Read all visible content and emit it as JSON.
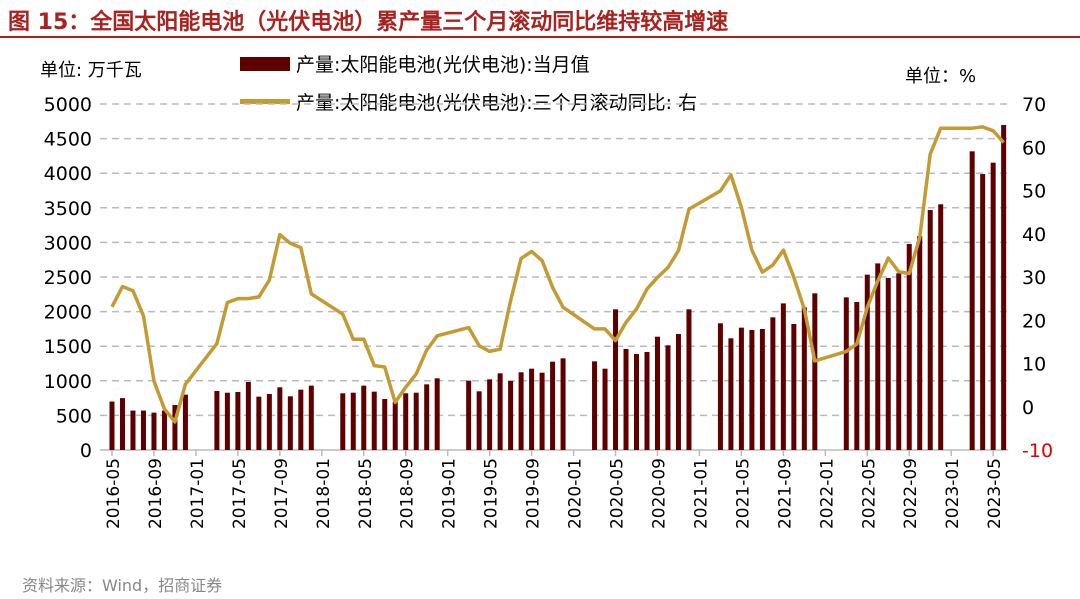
{
  "chart_data": {
    "type": "bar+line",
    "title": "图 15：全国太阳能电池（光伏电池）累产量三个月滚动同比维持较高增速",
    "left_unit": "单位: 万千瓦",
    "right_unit": "单位：%",
    "ylim_left": [
      0,
      5000
    ],
    "ylim_right": [
      -10,
      70
    ],
    "yticks_left": [
      "0",
      "500",
      "1000",
      "1500",
      "2000",
      "2500",
      "3000",
      "3500",
      "4000",
      "4500",
      "5000"
    ],
    "yticks_right": [
      "-10",
      "0",
      "10",
      "20",
      "30",
      "40",
      "50",
      "60",
      "70"
    ],
    "xtick_labels": [
      "2016-05",
      "2016-09",
      "2017-01",
      "2017-05",
      "2017-09",
      "2018-01",
      "2018-05",
      "2018-09",
      "2019-01",
      "2019-05",
      "2019-09",
      "2020-01",
      "2020-05",
      "2020-09",
      "2021-01",
      "2021-05",
      "2021-09",
      "2022-01",
      "2022-05",
      "2022-09",
      "2023-01",
      "2023-05"
    ],
    "grid": true,
    "legend_placement": "top",
    "categories": [
      "2016-05",
      "2016-06",
      "2016-07",
      "2016-08",
      "2016-09",
      "2016-10",
      "2016-11",
      "2016-12",
      "2017-01",
      "2017-02",
      "2017-03",
      "2017-04",
      "2017-05",
      "2017-06",
      "2017-07",
      "2017-08",
      "2017-09",
      "2017-10",
      "2017-11",
      "2017-12",
      "2018-01",
      "2018-02",
      "2018-03",
      "2018-04",
      "2018-05",
      "2018-06",
      "2018-07",
      "2018-08",
      "2018-09",
      "2018-10",
      "2018-11",
      "2018-12",
      "2019-01",
      "2019-02",
      "2019-03",
      "2019-04",
      "2019-05",
      "2019-06",
      "2019-07",
      "2019-08",
      "2019-09",
      "2019-10",
      "2019-11",
      "2019-12",
      "2020-01",
      "2020-02",
      "2020-03",
      "2020-04",
      "2020-05",
      "2020-06",
      "2020-07",
      "2020-08",
      "2020-09",
      "2020-10",
      "2020-11",
      "2020-12",
      "2021-01",
      "2021-02",
      "2021-03",
      "2021-04",
      "2021-05",
      "2021-06",
      "2021-07",
      "2021-08",
      "2021-09",
      "2021-10",
      "2021-11",
      "2021-12",
      "2022-01",
      "2022-02",
      "2022-03",
      "2022-04",
      "2022-05",
      "2022-06",
      "2022-07",
      "2022-08",
      "2022-09",
      "2022-10",
      "2022-11",
      "2022-12",
      "2023-01",
      "2023-02",
      "2023-03",
      "2023-04",
      "2023-05",
      "2023-06"
    ],
    "series": [
      {
        "name": "产量:太阳能电池(光伏电池):当月值",
        "type": "bar",
        "axis": "left",
        "color": "#5e0000",
        "values": [
          700,
          750,
          570,
          570,
          540,
          570,
          650,
          800,
          null,
          null,
          853,
          828,
          838,
          983,
          771,
          809,
          906,
          776,
          872,
          930,
          null,
          null,
          819,
          828,
          930,
          843,
          737,
          694,
          819,
          828,
          949,
          1036,
          null,
          null,
          1002,
          848,
          1021,
          1108,
          997,
          1123,
          1175,
          1117,
          1276,
          1325,
          null,
          null,
          1281,
          1175,
          2033,
          1460,
          1387,
          1416,
          1637,
          1513,
          1676,
          2033,
          null,
          null,
          1831,
          1614,
          1768,
          1734,
          1749,
          1917,
          2119,
          1821,
          2062,
          2264,
          null,
          null,
          2206,
          2139,
          2534,
          2697,
          2486,
          2553,
          2977,
          3092,
          3468,
          3551,
          null,
          null,
          4316,
          3988,
          4152,
          4697
        ]
      },
      {
        "name": "产量:太阳能电池(光伏电池):三个月滚动同比:  右",
        "type": "line",
        "axis": "right",
        "color": "#c49b33",
        "values": [
          23.1,
          27.8,
          26.8,
          21,
          5.9,
          -0.5,
          -3.5,
          5.2,
          null,
          null,
          14.6,
          24.1,
          25,
          25,
          25.4,
          29.3,
          39.8,
          37.8,
          36.8,
          26.1,
          null,
          null,
          21.4,
          15.6,
          15.6,
          9.5,
          9.2,
          1.0,
          4.5,
          7.6,
          13.1,
          16.4,
          null,
          null,
          18.3,
          14.1,
          12.8,
          13.3,
          24.5,
          34.3,
          35.9,
          33.8,
          27.6,
          23,
          null,
          null,
          18,
          18,
          15.3,
          19.5,
          22.6,
          27.2,
          29.9,
          32.2,
          36.1,
          45.7,
          null,
          null,
          49.9,
          53.6,
          46.1,
          36.2,
          31.1,
          32.8,
          36.2,
          29.9,
          22.6,
          10.6,
          null,
          null,
          12.8,
          14.5,
          23,
          29.1,
          34.4,
          31.2,
          30.8,
          39.1,
          58.4,
          64.4,
          null,
          null,
          64.4,
          64.7,
          63.8,
          61.1
        ]
      }
    ],
    "source": "资料来源：Wind，招商证券"
  }
}
